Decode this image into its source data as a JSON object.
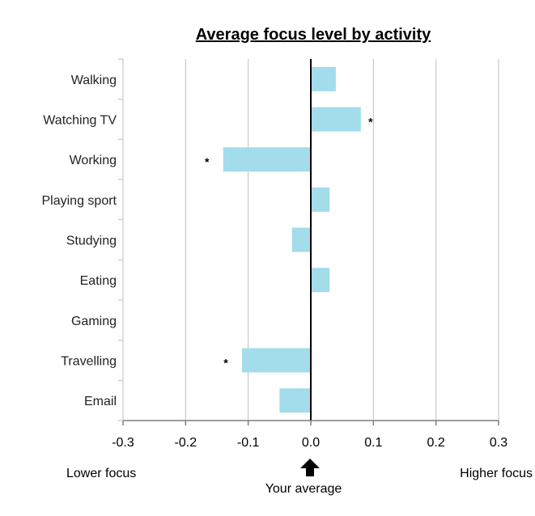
{
  "chart_data": {
    "type": "bar",
    "orientation": "horizontal",
    "title": "Average focus level by activity",
    "categories": [
      "Walking",
      "Watching TV",
      "Working",
      "Playing sport",
      "Studying",
      "Eating",
      "Gaming",
      "Travelling",
      "Email"
    ],
    "values": [
      0.04,
      0.08,
      -0.14,
      0.03,
      -0.03,
      0.03,
      0,
      -0.11,
      -0.05
    ],
    "significant": [
      false,
      true,
      true,
      false,
      false,
      false,
      false,
      true,
      false
    ],
    "significance_marker": "*",
    "xlim": [
      -0.3,
      0.3
    ],
    "xticks": [
      -0.3,
      -0.2,
      -0.1,
      0.0,
      0.1,
      0.2,
      0.3
    ],
    "xtick_labels": [
      "-0.3",
      "-0.2",
      "-0.1",
      "0.0",
      "0.1",
      "0.2",
      "0.3"
    ],
    "grid": "vertical",
    "bar_color": "#a3dcea",
    "baseline_color": "#000000",
    "grid_color": "#bfbfbf",
    "annotations": {
      "lower": "Lower focus",
      "higher": "Higher focus",
      "average": "Your average"
    },
    "arrow_icon": "up-arrow-icon"
  }
}
